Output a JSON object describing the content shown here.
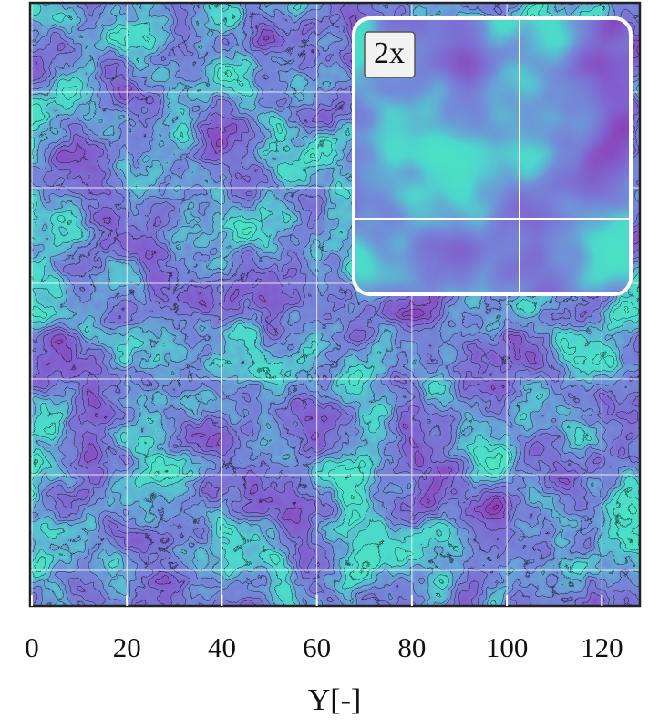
{
  "chart_data": {
    "type": "contour",
    "xlabel": "Y[-]",
    "inset_label": "2x",
    "xlim": [
      0,
      128
    ],
    "xticks": [
      0,
      20,
      40,
      60,
      80,
      100,
      120
    ],
    "grid": true
  }
}
